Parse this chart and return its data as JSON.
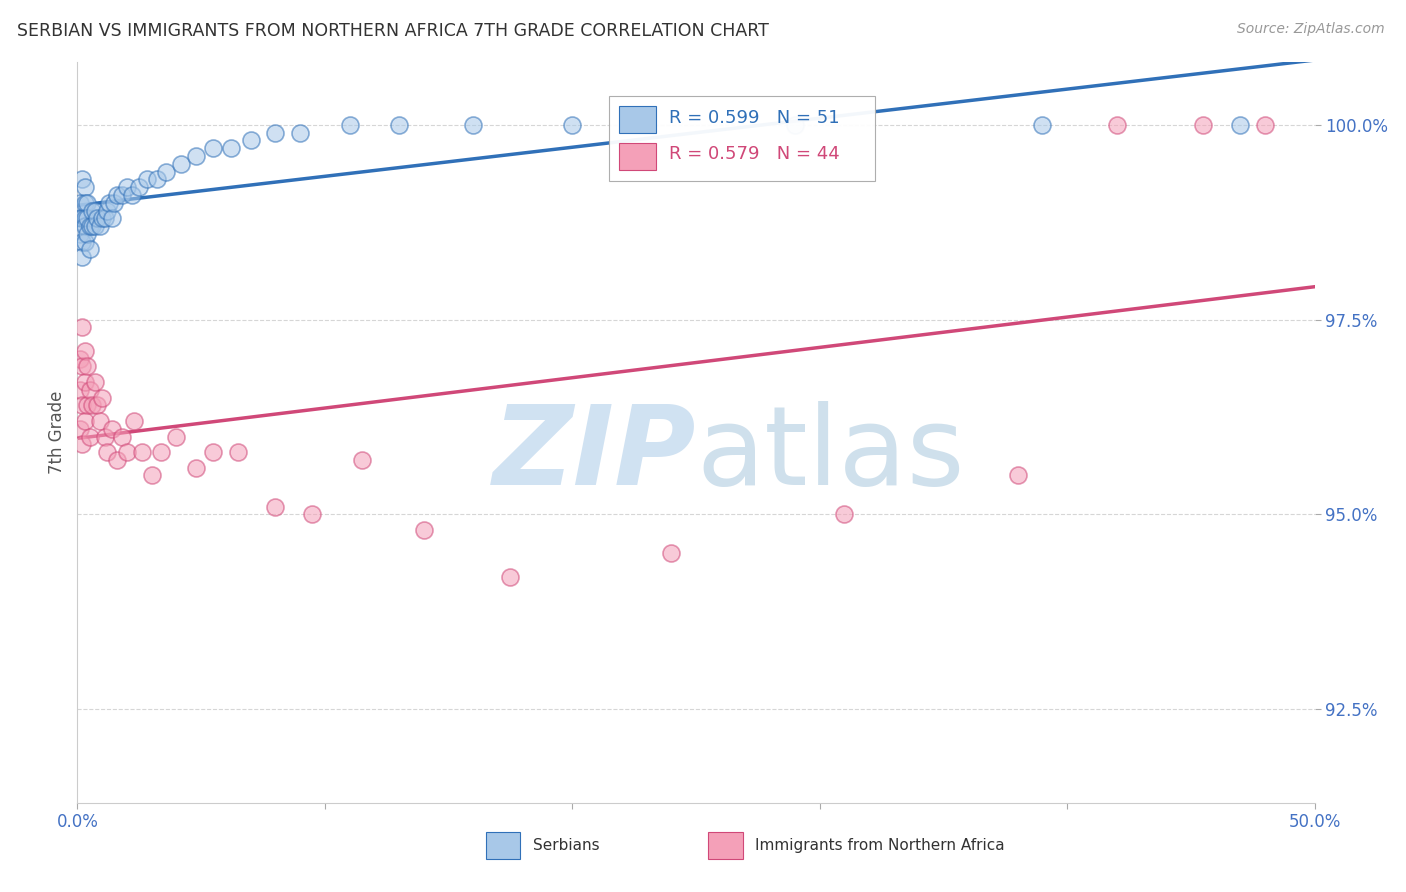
{
  "title": "SERBIAN VS IMMIGRANTS FROM NORTHERN AFRICA 7TH GRADE CORRELATION CHART",
  "source": "Source: ZipAtlas.com",
  "ylabel": "7th Grade",
  "xlim": [
    0.0,
    0.5
  ],
  "ylim": [
    0.913,
    1.008
  ],
  "legend_r_blue": "R = 0.599",
  "legend_n_blue": "N = 51",
  "legend_r_pink": "R = 0.579",
  "legend_n_pink": "N = 44",
  "blue_color": "#a8c8e8",
  "pink_color": "#f4a0b8",
  "blue_line_color": "#3070b8",
  "pink_line_color": "#d04878",
  "grid_color": "#cccccc",
  "title_color": "#333333",
  "axis_label_color": "#555555",
  "tick_color": "#4472c4",
  "watermark_zip_color": "#c8ddf0",
  "watermark_atlas_color": "#b0cce0",
  "blue_scatter_x": [
    0.001,
    0.001,
    0.001,
    0.002,
    0.002,
    0.002,
    0.002,
    0.003,
    0.003,
    0.003,
    0.003,
    0.003,
    0.004,
    0.004,
    0.004,
    0.005,
    0.005,
    0.006,
    0.006,
    0.007,
    0.007,
    0.008,
    0.009,
    0.01,
    0.011,
    0.012,
    0.013,
    0.014,
    0.015,
    0.016,
    0.018,
    0.02,
    0.022,
    0.025,
    0.028,
    0.032,
    0.036,
    0.042,
    0.048,
    0.055,
    0.062,
    0.07,
    0.08,
    0.09,
    0.11,
    0.13,
    0.16,
    0.2,
    0.29,
    0.39,
    0.47
  ],
  "blue_scatter_y": [
    0.99,
    0.988,
    0.986,
    0.993,
    0.988,
    0.985,
    0.983,
    0.992,
    0.99,
    0.988,
    0.987,
    0.985,
    0.99,
    0.988,
    0.986,
    0.987,
    0.984,
    0.989,
    0.987,
    0.989,
    0.987,
    0.988,
    0.987,
    0.988,
    0.988,
    0.989,
    0.99,
    0.988,
    0.99,
    0.991,
    0.991,
    0.992,
    0.991,
    0.992,
    0.993,
    0.993,
    0.994,
    0.995,
    0.996,
    0.997,
    0.997,
    0.998,
    0.999,
    0.999,
    1.0,
    1.0,
    1.0,
    1.0,
    1.0,
    1.0,
    1.0
  ],
  "pink_scatter_x": [
    0.001,
    0.001,
    0.001,
    0.002,
    0.002,
    0.002,
    0.002,
    0.003,
    0.003,
    0.003,
    0.004,
    0.004,
    0.005,
    0.005,
    0.006,
    0.007,
    0.008,
    0.009,
    0.01,
    0.011,
    0.012,
    0.014,
    0.016,
    0.018,
    0.02,
    0.023,
    0.026,
    0.03,
    0.034,
    0.04,
    0.048,
    0.055,
    0.065,
    0.08,
    0.095,
    0.115,
    0.14,
    0.175,
    0.24,
    0.31,
    0.38,
    0.42,
    0.455,
    0.48
  ],
  "pink_scatter_y": [
    0.97,
    0.966,
    0.961,
    0.974,
    0.969,
    0.964,
    0.959,
    0.971,
    0.967,
    0.962,
    0.969,
    0.964,
    0.966,
    0.96,
    0.964,
    0.967,
    0.964,
    0.962,
    0.965,
    0.96,
    0.958,
    0.961,
    0.957,
    0.96,
    0.958,
    0.962,
    0.958,
    0.955,
    0.958,
    0.96,
    0.956,
    0.958,
    0.958,
    0.951,
    0.95,
    0.957,
    0.948,
    0.942,
    0.945,
    0.95,
    0.955,
    1.0,
    1.0,
    1.0
  ]
}
